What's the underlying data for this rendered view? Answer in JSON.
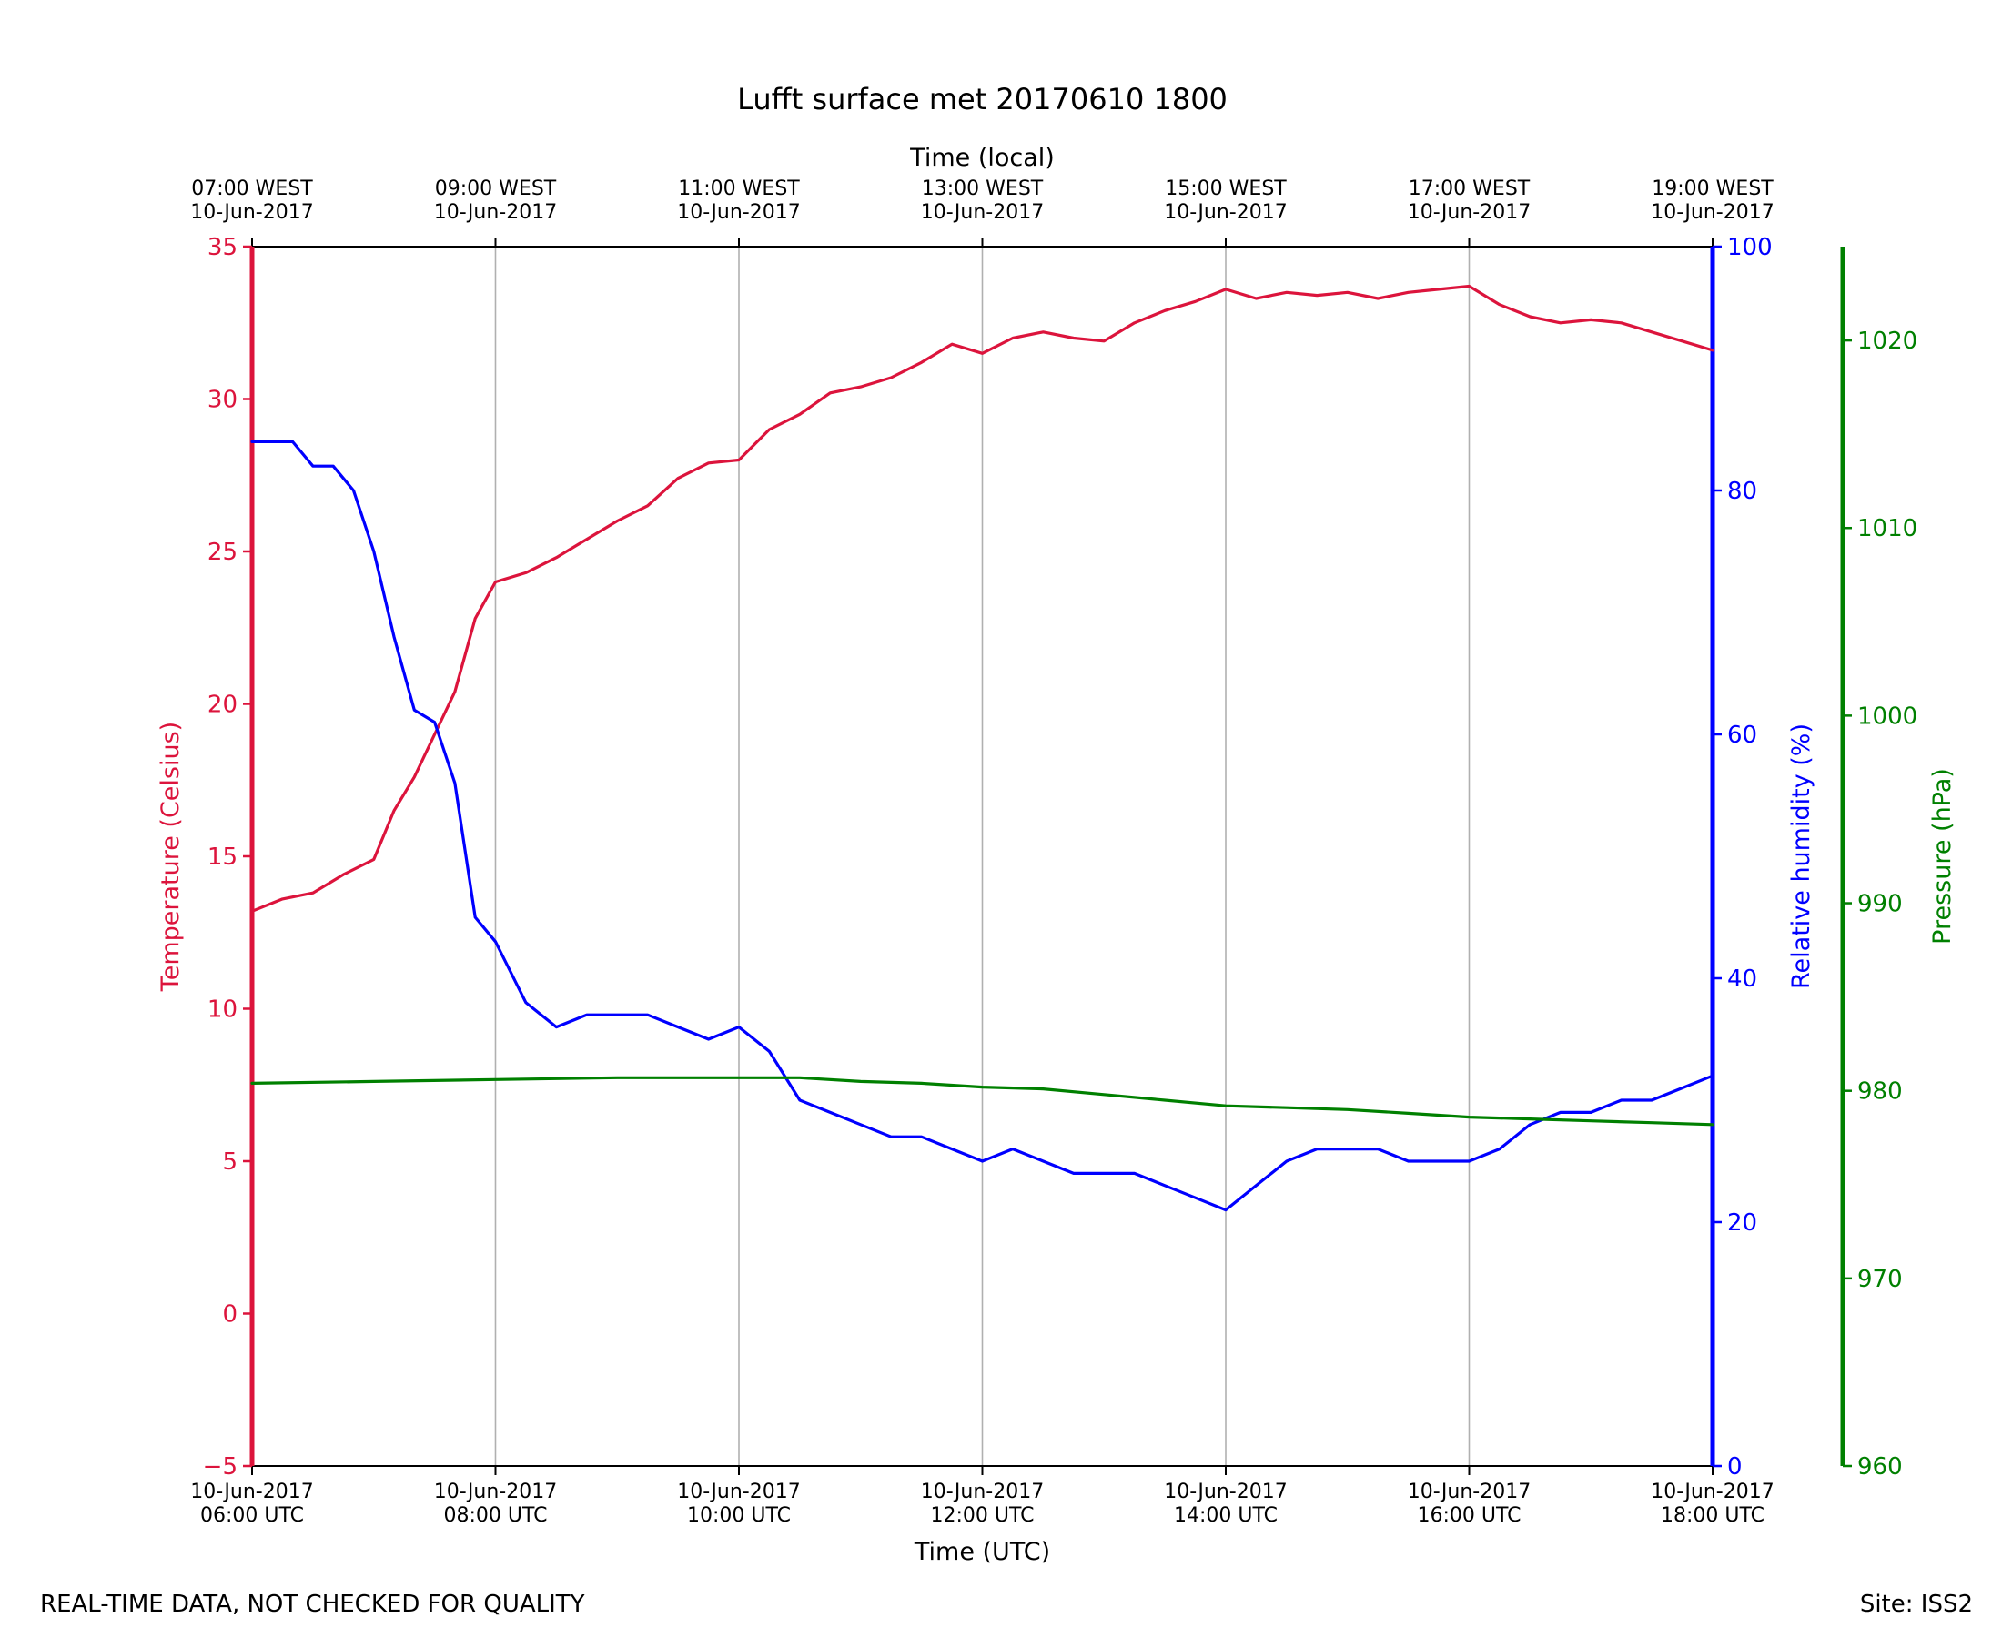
{
  "chart_data": {
    "type": "line",
    "title": "Lufft surface met 20170610 1800",
    "x_top_label": "Time (local)",
    "x_bottom_label": "Time (UTC)",
    "x_range": [
      "2017-06-10 06:00 UTC",
      "2017-06-10 18:00 UTC"
    ],
    "x_ticks_bottom": [
      {
        "x": "2017-06-10 06:00",
        "line1": "10-Jun-2017",
        "line2": "06:00 UTC"
      },
      {
        "x": "2017-06-10 08:00",
        "line1": "10-Jun-2017",
        "line2": "08:00 UTC"
      },
      {
        "x": "2017-06-10 10:00",
        "line1": "10-Jun-2017",
        "line2": "10:00 UTC"
      },
      {
        "x": "2017-06-10 12:00",
        "line1": "10-Jun-2017",
        "line2": "12:00 UTC"
      },
      {
        "x": "2017-06-10 14:00",
        "line1": "10-Jun-2017",
        "line2": "14:00 UTC"
      },
      {
        "x": "2017-06-10 16:00",
        "line1": "10-Jun-2017",
        "line2": "16:00 UTC"
      },
      {
        "x": "2017-06-10 18:00",
        "line1": "10-Jun-2017",
        "line2": "18:00 UTC"
      }
    ],
    "x_ticks_top": [
      {
        "x": "2017-06-10 06:00",
        "line1": "07:00 WEST",
        "line2": "10-Jun-2017"
      },
      {
        "x": "2017-06-10 08:00",
        "line1": "09:00 WEST",
        "line2": "10-Jun-2017"
      },
      {
        "x": "2017-06-10 10:00",
        "line1": "11:00 WEST",
        "line2": "10-Jun-2017"
      },
      {
        "x": "2017-06-10 12:00",
        "line1": "13:00 WEST",
        "line2": "10-Jun-2017"
      },
      {
        "x": "2017-06-10 14:00",
        "line1": "15:00 WEST",
        "line2": "10-Jun-2017"
      },
      {
        "x": "2017-06-10 16:00",
        "line1": "17:00 WEST",
        "line2": "10-Jun-2017"
      },
      {
        "x": "2017-06-10 18:00",
        "line1": "19:00 WEST",
        "line2": "10-Jun-2017"
      }
    ],
    "grid": "vertical",
    "axes": [
      {
        "id": "temp",
        "label": "Temperature (Celsius)",
        "color": "#dc143c",
        "side": "left",
        "ylim": [
          -5,
          35
        ],
        "ticks": [
          -5,
          0,
          5,
          10,
          15,
          20,
          25,
          30,
          35
        ]
      },
      {
        "id": "rh",
        "label": "Relative humidity (%)",
        "color": "#0000ff",
        "side": "right",
        "ylim": [
          0,
          100
        ],
        "ticks": [
          0,
          20,
          40,
          60,
          80,
          100
        ]
      },
      {
        "id": "pres",
        "label": "Pressure (hPa)",
        "color": "#008000",
        "side": "right-outer",
        "ylim": [
          960,
          1025
        ],
        "ticks": [
          960,
          970,
          980,
          990,
          1000,
          1010,
          1020
        ]
      }
    ],
    "series": [
      {
        "axis": "temp",
        "color": "#dc143c",
        "x": [
          "2017-06-10 06:00",
          "2017-06-10 06:15",
          "2017-06-10 06:30",
          "2017-06-10 06:45",
          "2017-06-10 07:00",
          "2017-06-10 07:10",
          "2017-06-10 07:20",
          "2017-06-10 07:30",
          "2017-06-10 07:40",
          "2017-06-10 07:50",
          "2017-06-10 08:00",
          "2017-06-10 08:15",
          "2017-06-10 08:30",
          "2017-06-10 08:45",
          "2017-06-10 09:00",
          "2017-06-10 09:15",
          "2017-06-10 09:30",
          "2017-06-10 09:45",
          "2017-06-10 10:00",
          "2017-06-10 10:15",
          "2017-06-10 10:30",
          "2017-06-10 10:45",
          "2017-06-10 11:00",
          "2017-06-10 11:15",
          "2017-06-10 11:30",
          "2017-06-10 11:45",
          "2017-06-10 12:00",
          "2017-06-10 12:15",
          "2017-06-10 12:30",
          "2017-06-10 12:45",
          "2017-06-10 13:00",
          "2017-06-10 13:15",
          "2017-06-10 13:30",
          "2017-06-10 13:45",
          "2017-06-10 14:00",
          "2017-06-10 14:15",
          "2017-06-10 14:30",
          "2017-06-10 14:45",
          "2017-06-10 15:00",
          "2017-06-10 15:15",
          "2017-06-10 15:30",
          "2017-06-10 15:45",
          "2017-06-10 16:00",
          "2017-06-10 16:15",
          "2017-06-10 16:30",
          "2017-06-10 16:45",
          "2017-06-10 17:00",
          "2017-06-10 17:15",
          "2017-06-10 17:30",
          "2017-06-10 17:45",
          "2017-06-10 18:00"
        ],
        "values": [
          13.2,
          13.6,
          13.8,
          14.4,
          14.9,
          16.5,
          17.6,
          19.0,
          20.4,
          22.8,
          24.0,
          24.3,
          24.8,
          25.4,
          26.0,
          26.5,
          27.4,
          27.9,
          28.0,
          29.0,
          29.5,
          30.2,
          30.4,
          30.7,
          31.2,
          31.8,
          31.5,
          32.0,
          32.2,
          32.0,
          31.9,
          32.5,
          32.9,
          33.2,
          33.6,
          33.3,
          33.5,
          33.4,
          33.5,
          33.3,
          33.5,
          33.6,
          33.7,
          33.1,
          32.7,
          32.5,
          32.6,
          32.5,
          32.2,
          31.9,
          31.6
        ]
      },
      {
        "axis": "rh",
        "color": "#0000ff",
        "x": [
          "2017-06-10 06:00",
          "2017-06-10 06:10",
          "2017-06-10 06:20",
          "2017-06-10 06:30",
          "2017-06-10 06:40",
          "2017-06-10 06:50",
          "2017-06-10 07:00",
          "2017-06-10 07:10",
          "2017-06-10 07:20",
          "2017-06-10 07:30",
          "2017-06-10 07:40",
          "2017-06-10 07:50",
          "2017-06-10 08:00",
          "2017-06-10 08:15",
          "2017-06-10 08:30",
          "2017-06-10 08:45",
          "2017-06-10 09:00",
          "2017-06-10 09:15",
          "2017-06-10 09:30",
          "2017-06-10 09:45",
          "2017-06-10 10:00",
          "2017-06-10 10:15",
          "2017-06-10 10:30",
          "2017-06-10 10:45",
          "2017-06-10 11:00",
          "2017-06-10 11:15",
          "2017-06-10 11:30",
          "2017-06-10 11:45",
          "2017-06-10 12:00",
          "2017-06-10 12:15",
          "2017-06-10 12:30",
          "2017-06-10 12:45",
          "2017-06-10 13:00",
          "2017-06-10 13:15",
          "2017-06-10 13:30",
          "2017-06-10 13:45",
          "2017-06-10 14:00",
          "2017-06-10 14:15",
          "2017-06-10 14:30",
          "2017-06-10 14:45",
          "2017-06-10 15:00",
          "2017-06-10 15:15",
          "2017-06-10 15:30",
          "2017-06-10 15:45",
          "2017-06-10 16:00",
          "2017-06-10 16:15",
          "2017-06-10 16:30",
          "2017-06-10 16:45",
          "2017-06-10 17:00",
          "2017-06-10 17:15",
          "2017-06-10 17:30",
          "2017-06-10 17:45",
          "2017-06-10 18:00"
        ],
        "values": [
          84,
          84,
          84,
          82,
          82,
          80,
          75,
          68,
          62,
          61,
          56,
          45,
          43,
          38,
          36,
          37,
          37,
          37,
          36,
          35,
          36,
          34,
          30,
          29,
          28,
          27,
          27,
          26,
          25,
          26,
          25,
          24,
          24,
          24,
          23,
          22,
          21,
          23,
          25,
          26,
          26,
          26,
          25,
          25,
          25,
          26,
          28,
          29,
          29,
          30,
          30,
          31,
          32
        ]
      },
      {
        "axis": "pres",
        "color": "#008000",
        "x": [
          "2017-06-10 06:00",
          "2017-06-10 07:00",
          "2017-06-10 08:00",
          "2017-06-10 09:00",
          "2017-06-10 10:00",
          "2017-06-10 10:30",
          "2017-06-10 11:00",
          "2017-06-10 11:30",
          "2017-06-10 12:00",
          "2017-06-10 12:30",
          "2017-06-10 13:00",
          "2017-06-10 13:30",
          "2017-06-10 14:00",
          "2017-06-10 14:30",
          "2017-06-10 15:00",
          "2017-06-10 15:30",
          "2017-06-10 16:00",
          "2017-06-10 16:30",
          "2017-06-10 17:00",
          "2017-06-10 17:30",
          "2017-06-10 18:00"
        ],
        "values": [
          980.4,
          980.5,
          980.6,
          980.7,
          980.7,
          980.7,
          980.5,
          980.4,
          980.2,
          980.1,
          979.8,
          979.5,
          979.2,
          979.1,
          979.0,
          978.8,
          978.6,
          978.5,
          978.4,
          978.3,
          978.2
        ]
      }
    ]
  },
  "footer": {
    "left": "REAL-TIME DATA, NOT CHECKED FOR QUALITY",
    "right": "Site: ISS2"
  }
}
